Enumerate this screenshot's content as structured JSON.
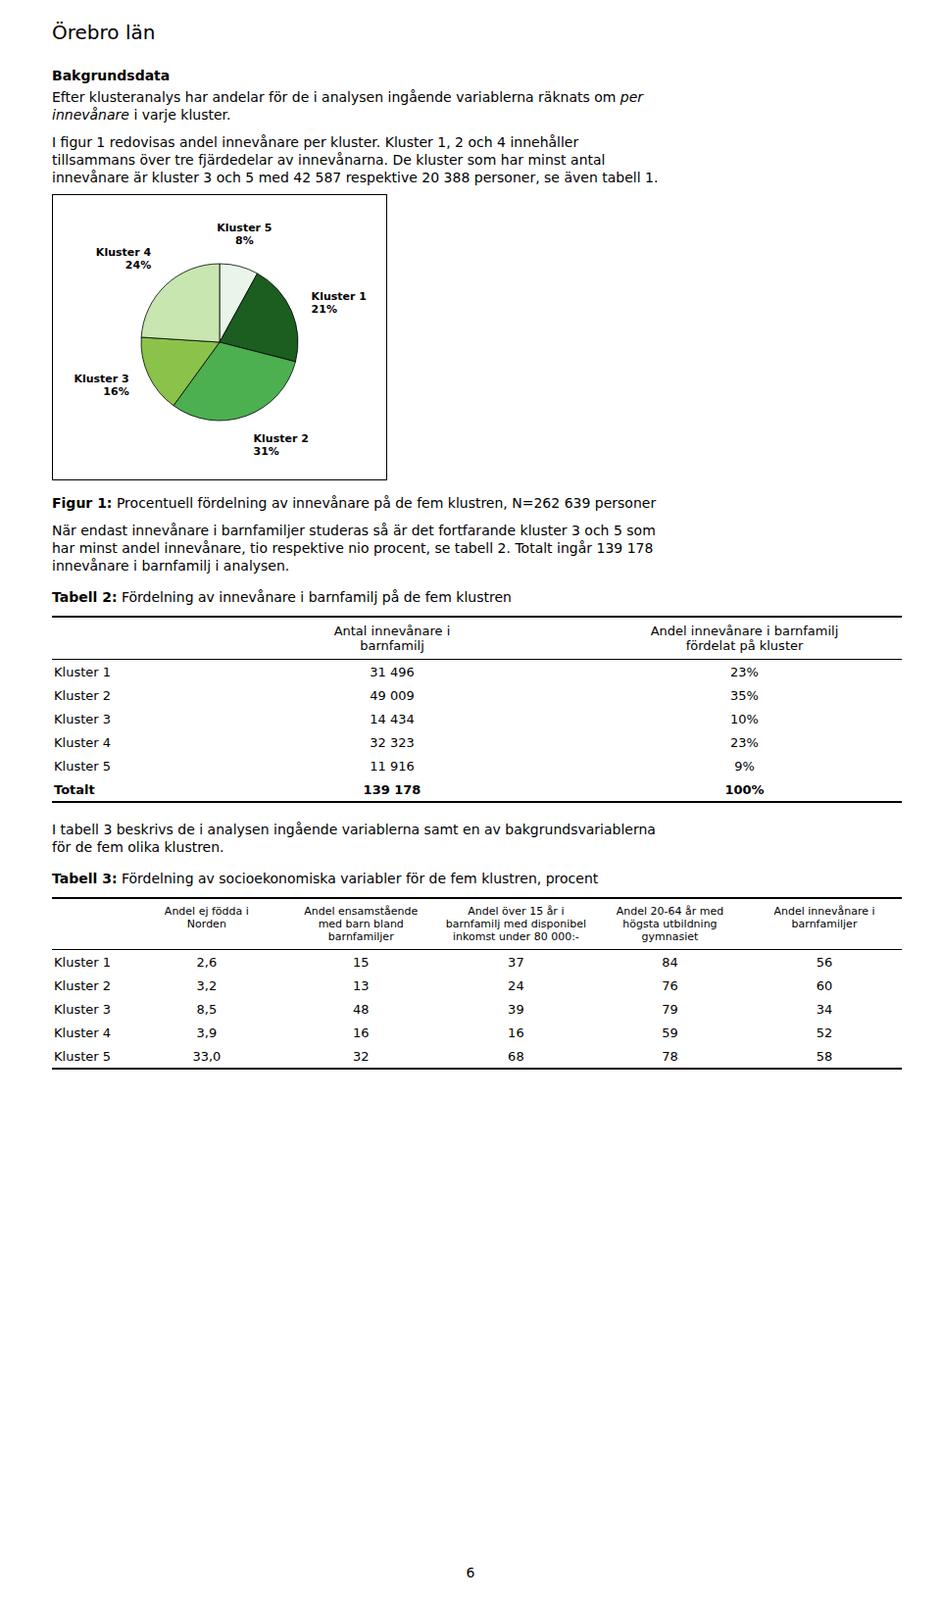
{
  "chart_data": {
    "type": "pie",
    "categories": [
      "Kluster 5",
      "Kluster 1",
      "Kluster 2",
      "Kluster 3",
      "Kluster 4"
    ],
    "values": [
      8,
      21,
      31,
      16,
      24
    ],
    "value_labels": [
      "8%",
      "21%",
      "31%",
      "16%",
      "24%"
    ],
    "colors": [
      "#e8f5e8",
      "#1b5e20",
      "#4caf50",
      "#8bc34a",
      "#c8e6b0"
    ],
    "data_labels": true
  },
  "document": {
    "title": "Örebro län",
    "section1_heading": "Bakgrundsdata",
    "section1_lines": [
      [
        {
          "text": "Efter klusteranalys har andelar för de i analysen ingående variablerna räknats om ",
          "italic": false
        },
        {
          "text": "per",
          "italic": true
        }
      ],
      [
        {
          "text": "innevånare",
          "italic": true
        },
        {
          "text": " i varje kluster.",
          "italic": false
        }
      ]
    ],
    "section2_lines": [
      "I figur 1 redovisas andel innevånare per kluster. Kluster 1, 2 och 4 innehåller",
      "tillsammans över tre fjärdedelar av innevånarna. De kluster som har minst antal",
      "innevånare är kluster 3 och 5 med 42 587 respektive 20 388 personer, se även tabell 1."
    ],
    "figure1_caption": {
      "bold": "Figur 1:",
      "text": " Procentuell fördelning av innevånare på de fem klustren, N=262 639 personer"
    },
    "section3_lines": [
      "När endast innevånare i barnfamiljer studeras så är det fortfarande kluster 3 och 5 som",
      "har minst andel innevånare, tio respektive nio procent, se tabell 2. Totalt ingår 139 178",
      "innevånare i barnfamilj i analysen."
    ],
    "table2": {
      "caption": {
        "bold": "Tabell 2:",
        "text": " Fördelning av innevånare i barnfamilj på de fem klustren"
      },
      "columns": [
        "Antal innevånare i\nbarnfamilj",
        "Andel innevånare i barnfamilj\nfördelat på kluster"
      ],
      "rows": [
        [
          "Kluster 1",
          "31 496",
          "23%"
        ],
        [
          "Kluster 2",
          "49 009",
          "35%"
        ],
        [
          "Kluster 3",
          "14 434",
          "10%"
        ],
        [
          "Kluster 4",
          "32 323",
          "23%"
        ],
        [
          "Kluster 5",
          "11 916",
          "9%"
        ],
        [
          "Totalt",
          "139 178",
          "100%"
        ]
      ],
      "bold_last_row": true
    },
    "section4_lines": [
      "I tabell 3 beskrivs de i analysen ingående variablerna samt en av bakgrundsvariablerna",
      "för de fem olika klustren."
    ],
    "table3": {
      "caption": {
        "bold": "Tabell 3:",
        "text": " Fördelning av socioekonomiska variabler för de fem klustren, procent"
      },
      "columns": [
        "Andel ej födda i\nNorden",
        "Andel ensamstående\nmed barn bland\nbarnfamiljer",
        "Andel över 15 år i\nbarnfamilj med disponibel\ninkomst under 80 000:-",
        "Andel 20-64 år med\nhögsta utbildning\ngymnasiet",
        "Andel innevånare i\nbarnfamiljer"
      ],
      "rows": [
        [
          "Kluster 1",
          "2,6",
          "15",
          "37",
          "84",
          "56"
        ],
        [
          "Kluster 2",
          "3,2",
          "13",
          "24",
          "76",
          "60"
        ],
        [
          "Kluster 3",
          "8,5",
          "48",
          "39",
          "79",
          "34"
        ],
        [
          "Kluster 4",
          "3,9",
          "16",
          "16",
          "59",
          "52"
        ],
        [
          "Kluster 5",
          "33,0",
          "32",
          "68",
          "78",
          "58"
        ]
      ]
    },
    "page_number": "6"
  }
}
